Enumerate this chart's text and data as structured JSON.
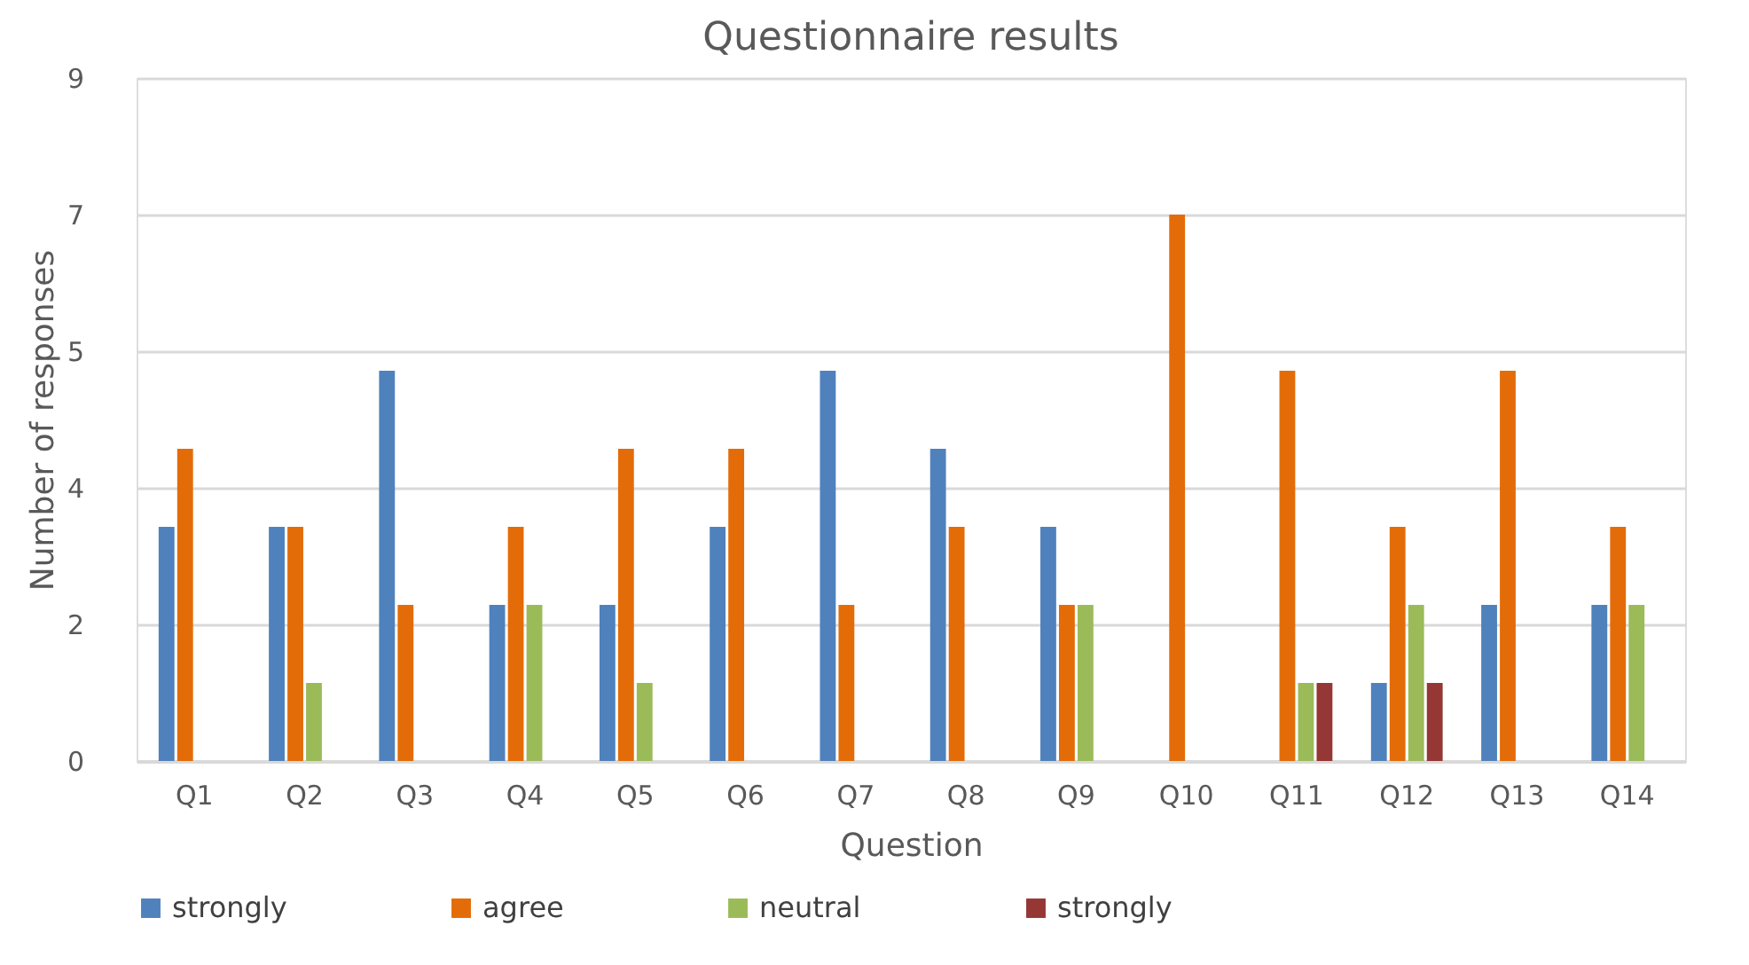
{
  "chart_data": {
    "type": "bar",
    "title": "Questionnaire results",
    "xlabel": "Question",
    "ylabel": "Number of responses",
    "categories": [
      "Q1",
      "Q2",
      "Q3",
      "Q4",
      "Q5",
      "Q6",
      "Q7",
      "Q8",
      "Q9",
      "Q10",
      "Q11",
      "Q12",
      "Q13",
      "Q14"
    ],
    "series": [
      {
        "name": "strongly",
        "color": "#4f81bd",
        "values": [
          3,
          3,
          5,
          2,
          2,
          3,
          5,
          4,
          3,
          0,
          0,
          1,
          2,
          2
        ]
      },
      {
        "name": "agree",
        "color": "#e36c09",
        "values": [
          4,
          3,
          2,
          3,
          4,
          4,
          2,
          3,
          2,
          7,
          5,
          3,
          5,
          3
        ]
      },
      {
        "name": "neutral",
        "color": "#9bbb59",
        "values": [
          0,
          1,
          0,
          2,
          1,
          0,
          0,
          0,
          2,
          0,
          1,
          2,
          0,
          2
        ]
      },
      {
        "name": "strongly",
        "color": "#953735",
        "values": [
          0,
          0,
          0,
          0,
          0,
          0,
          0,
          0,
          0,
          0,
          1,
          1,
          0,
          0
        ]
      }
    ],
    "ylim": [
      0,
      8.75
    ],
    "yticks": [
      0,
      {
        "value": 1.75,
        "label": "2"
      },
      {
        "value": 3.5,
        "label": "4"
      },
      {
        "value": 5.25,
        "label": "5"
      },
      7,
      {
        "value": 8.75,
        "label": "9"
      }
    ],
    "grid": "y",
    "legend": "bottom"
  }
}
